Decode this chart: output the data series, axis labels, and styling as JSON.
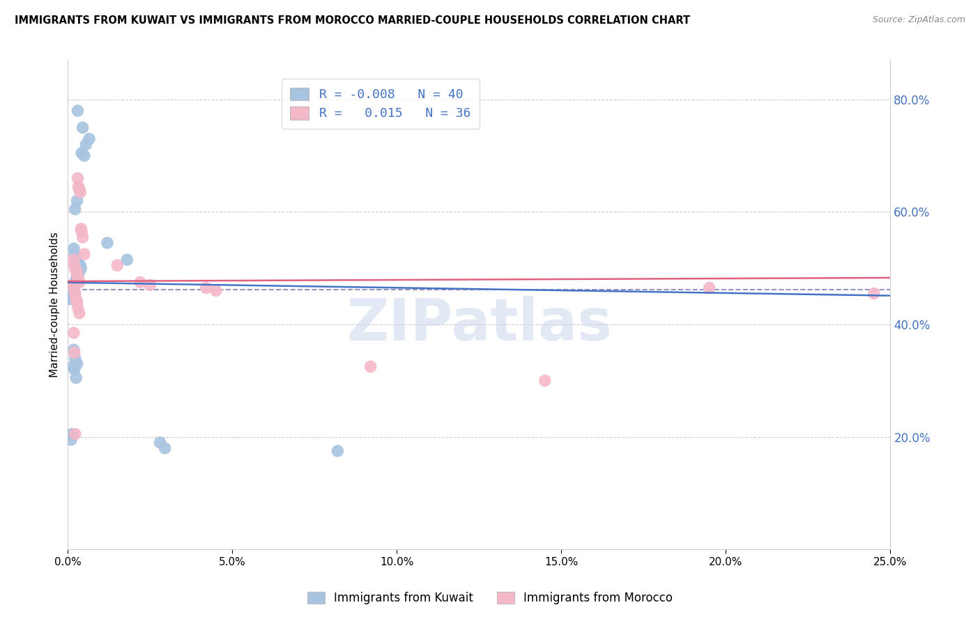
{
  "title": "IMMIGRANTS FROM KUWAIT VS IMMIGRANTS FROM MOROCCO MARRIED-COUPLE HOUSEHOLDS CORRELATION CHART",
  "source": "Source: ZipAtlas.com",
  "ylabel": "Married-couple Households",
  "xlim": [
    0.0,
    25.0
  ],
  "ylim": [
    0.0,
    87.0
  ],
  "yticks": [
    20.0,
    40.0,
    60.0,
    80.0
  ],
  "xticks": [
    0.0,
    5.0,
    10.0,
    15.0,
    20.0,
    25.0
  ],
  "legend_r_kuwait": "-0.008",
  "legend_n_kuwait": "40",
  "legend_r_morocco": "0.015",
  "legend_n_morocco": "36",
  "blue_color": "#a8c4e0",
  "pink_color": "#f4b8c8",
  "blue_line_color": "#4472c4",
  "pink_line_color": "#e06080",
  "dashed_line_color": "#9090c0",
  "watermark_color": "#ccd8ec",
  "kuwait_x": [
    0.3,
    0.45,
    0.55,
    0.65,
    0.42,
    0.5,
    0.35,
    0.28,
    0.22,
    0.18,
    0.2,
    0.25,
    0.3,
    0.38,
    0.4,
    0.35,
    0.32,
    0.28,
    0.25,
    0.22,
    0.2,
    0.18,
    0.15,
    0.12,
    0.1,
    0.08,
    0.06,
    0.18,
    0.22,
    0.28,
    0.15,
    0.2,
    0.25,
    1.2,
    1.8,
    0.12,
    0.1,
    2.8,
    2.95,
    8.2
  ],
  "kuwait_y": [
    78.0,
    75.0,
    72.0,
    73.0,
    70.5,
    70.0,
    64.0,
    62.0,
    60.5,
    53.5,
    52.5,
    51.5,
    51.0,
    50.5,
    50.0,
    49.5,
    49.0,
    48.5,
    48.0,
    47.5,
    47.0,
    47.0,
    46.5,
    46.0,
    45.5,
    45.0,
    44.5,
    35.5,
    34.0,
    33.0,
    32.5,
    32.0,
    30.5,
    54.5,
    51.5,
    20.5,
    19.5,
    19.0,
    18.0,
    17.5
  ],
  "morocco_x": [
    0.3,
    0.32,
    0.35,
    0.38,
    0.4,
    0.42,
    0.45,
    0.5,
    0.18,
    0.2,
    0.22,
    0.25,
    0.28,
    0.3,
    0.32,
    0.35,
    0.15,
    0.18,
    0.2,
    0.22,
    0.25,
    0.28,
    0.3,
    0.35,
    1.5,
    2.2,
    2.5,
    4.2,
    4.5,
    0.18,
    0.2,
    9.2,
    14.5,
    24.5,
    19.5,
    0.22
  ],
  "morocco_y": [
    66.0,
    64.5,
    64.0,
    63.5,
    57.0,
    56.5,
    55.5,
    52.5,
    51.5,
    50.5,
    50.0,
    49.5,
    49.0,
    48.5,
    48.0,
    47.5,
    47.0,
    46.5,
    46.0,
    45.5,
    44.5,
    44.0,
    43.0,
    42.0,
    50.5,
    47.5,
    47.0,
    46.5,
    46.0,
    38.5,
    35.0,
    32.5,
    30.0,
    45.5,
    46.5,
    20.5
  ],
  "dashed_y": 46.2
}
